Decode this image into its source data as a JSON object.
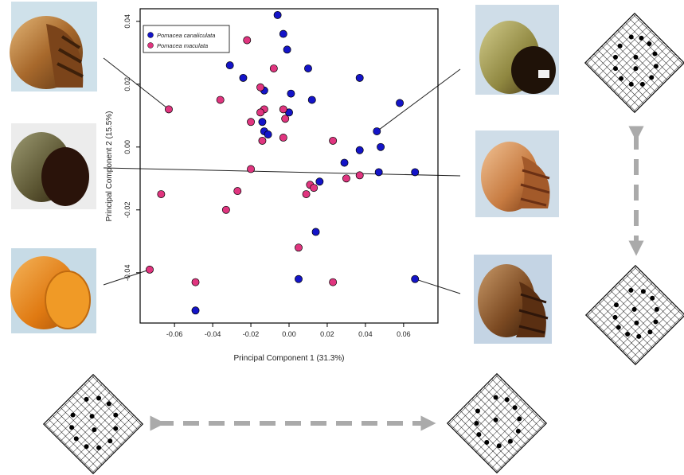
{
  "chart_data": {
    "type": "scatter",
    "xlabel": "Principal Component 1 (31.3%)",
    "ylabel": "Principal Component 2 (15.5%)",
    "xlim": [
      -0.078,
      0.078
    ],
    "ylim": [
      -0.056,
      0.044
    ],
    "xticks": [
      -0.06,
      -0.04,
      -0.02,
      0.0,
      0.02,
      0.04,
      0.06
    ],
    "xtick_labels": [
      "-0.06",
      "-0.04",
      "-0.02",
      "0.00",
      "0.02",
      "0.04",
      "0.06"
    ],
    "yticks": [
      -0.04,
      -0.02,
      0.0,
      0.02,
      0.04
    ],
    "ytick_labels": [
      "-0.04",
      "-0.02",
      "0.00",
      "0.02",
      "0.04"
    ],
    "grid": false,
    "legend_position": "top-left",
    "series": [
      {
        "name": "Pomacea canaliculata",
        "color": "#1414c8",
        "points": [
          [
            -0.006,
            0.042
          ],
          [
            -0.003,
            0.036
          ],
          [
            -0.001,
            0.031
          ],
          [
            -0.031,
            0.026
          ],
          [
            -0.024,
            0.022
          ],
          [
            0.01,
            0.025
          ],
          [
            0.037,
            0.022
          ],
          [
            -0.013,
            0.018
          ],
          [
            0.001,
            0.017
          ],
          [
            0.012,
            0.015
          ],
          [
            0.058,
            0.014
          ],
          [
            0.0,
            0.011
          ],
          [
            -0.014,
            0.008
          ],
          [
            -0.013,
            0.005
          ],
          [
            -0.011,
            0.004
          ],
          [
            0.046,
            0.005
          ],
          [
            0.048,
            0.0
          ],
          [
            0.037,
            -0.001
          ],
          [
            0.029,
            -0.005
          ],
          [
            0.047,
            -0.008
          ],
          [
            0.066,
            -0.008
          ],
          [
            0.016,
            -0.011
          ],
          [
            0.014,
            -0.027
          ],
          [
            0.005,
            -0.042
          ],
          [
            0.066,
            -0.042
          ],
          [
            -0.049,
            -0.052
          ]
        ]
      },
      {
        "name": "Pomacea maculata",
        "color": "#e0357f",
        "points": [
          [
            -0.022,
            0.034
          ],
          [
            -0.008,
            0.025
          ],
          [
            -0.036,
            0.015
          ],
          [
            -0.063,
            0.012
          ],
          [
            -0.015,
            0.019
          ],
          [
            -0.013,
            0.012
          ],
          [
            -0.015,
            0.011
          ],
          [
            -0.003,
            0.012
          ],
          [
            -0.002,
            0.009
          ],
          [
            -0.02,
            0.008
          ],
          [
            -0.014,
            0.002
          ],
          [
            -0.003,
            0.003
          ],
          [
            0.023,
            0.002
          ],
          [
            -0.02,
            -0.007
          ],
          [
            0.03,
            -0.01
          ],
          [
            0.037,
            -0.009
          ],
          [
            0.011,
            -0.012
          ],
          [
            0.013,
            -0.013
          ],
          [
            0.009,
            -0.015
          ],
          [
            -0.027,
            -0.014
          ],
          [
            -0.067,
            -0.015
          ],
          [
            -0.033,
            -0.02
          ],
          [
            0.005,
            -0.032
          ],
          [
            -0.073,
            -0.039
          ],
          [
            -0.049,
            -0.043
          ],
          [
            0.023,
            -0.043
          ]
        ]
      }
    ]
  }
}
